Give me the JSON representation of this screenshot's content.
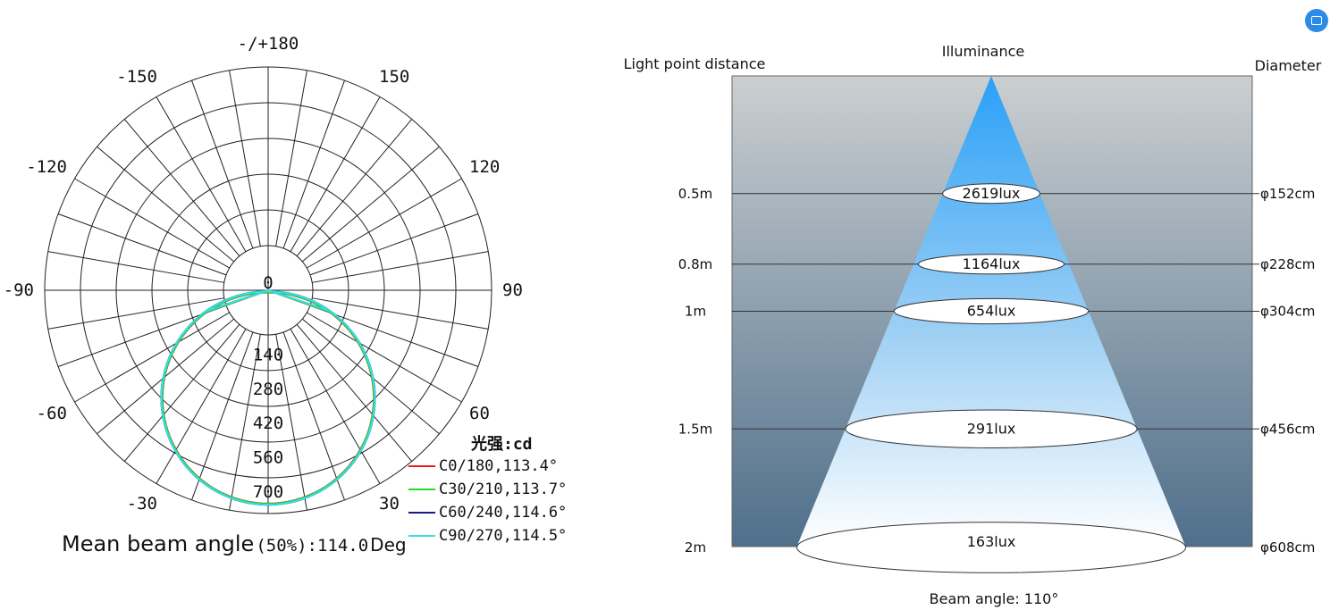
{
  "colors": {
    "grid": "#222222",
    "C0": "#e02020",
    "C30": "#22dd22",
    "C60": "#1a1a80",
    "C90": "#33e0e0",
    "cone_top": "#2aa0f8",
    "cone_bottom": "#ffffff",
    "bg_top": "#cbcfd1",
    "bg_bottom": "#4f6f8b"
  },
  "corner_icon": "app-icon",
  "chart_data": [
    {
      "type": "polar",
      "angle_labels": [
        {
          "deg": 0,
          "text": "-/+180"
        },
        {
          "deg": 30,
          "text": "150"
        },
        {
          "deg": 60,
          "text": "120"
        },
        {
          "deg": 90,
          "text": "90"
        },
        {
          "deg": 120,
          "text": "60"
        },
        {
          "deg": 150,
          "text": "30"
        },
        {
          "deg": -30,
          "text": "-150"
        },
        {
          "deg": -60,
          "text": "-120"
        },
        {
          "deg": -90,
          "text": "-90"
        },
        {
          "deg": -120,
          "text": "-60"
        },
        {
          "deg": -150,
          "text": "-30"
        }
      ],
      "rlim": [
        0,
        700
      ],
      "radial_ticks": [
        {
          "value": 0,
          "text": "0"
        },
        {
          "value": 140,
          "text": "140"
        },
        {
          "value": 280,
          "text": "280"
        },
        {
          "value": 420,
          "text": "420"
        },
        {
          "value": 560,
          "text": "560"
        },
        {
          "value": 700,
          "text": "700"
        }
      ],
      "legend_title": "光强:cd",
      "series": [
        {
          "name": "C0/180,113.4°",
          "color_key": "C0",
          "peak_cd": 700,
          "half_angle_deg": 56.7
        },
        {
          "name": "C30/210,113.7°",
          "color_key": "C30",
          "peak_cd": 700,
          "half_angle_deg": 56.85
        },
        {
          "name": "C60/240,114.6°",
          "color_key": "C60",
          "peak_cd": 700,
          "half_angle_deg": 57.3
        },
        {
          "name": "C90/270,114.5°",
          "color_key": "C90",
          "peak_cd": 700,
          "half_angle_deg": 57.25
        }
      ],
      "footer_label": "Mean beam angle",
      "footer_value": "(50%):114.0",
      "footer_unit": "Deg"
    },
    {
      "type": "table",
      "title": "Illuminance",
      "left_header": "Light point distance",
      "right_header": "Diameter",
      "beam_angle_label": "Beam angle: 110°",
      "rows": [
        {
          "distance": "0.5m",
          "d_m": 0.5,
          "illuminance": "2619lux",
          "diameter": "φ152cm"
        },
        {
          "distance": "0.8m",
          "d_m": 0.8,
          "illuminance": "1164lux",
          "diameter": "φ228cm"
        },
        {
          "distance": "1m",
          "d_m": 1.0,
          "illuminance": "654lux",
          "diameter": "φ304cm"
        },
        {
          "distance": "1.5m",
          "d_m": 1.5,
          "illuminance": "291lux",
          "diameter": "φ456cm"
        },
        {
          "distance": "2m",
          "d_m": 2.0,
          "illuminance": "163lux",
          "diameter": "φ608cm"
        }
      ]
    }
  ]
}
